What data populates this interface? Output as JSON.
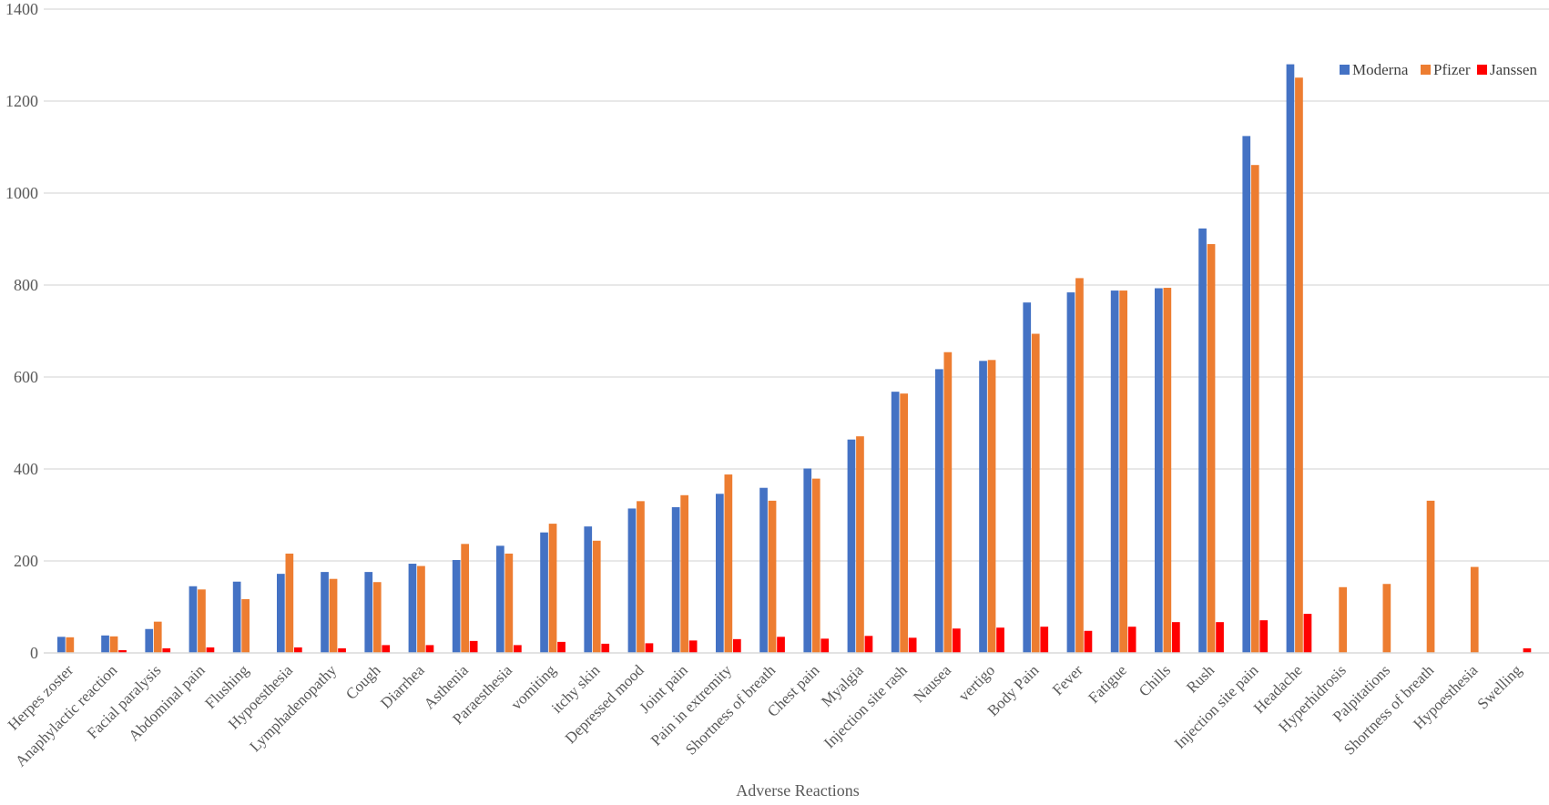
{
  "chart_data": {
    "type": "bar",
    "title": "",
    "xlabel": "Adverse Reactions",
    "ylabel": "",
    "ylim": [
      0,
      1400
    ],
    "yticks": [
      0,
      200,
      400,
      600,
      800,
      1000,
      1200,
      1400
    ],
    "grid": true,
    "legend_position": "top-right",
    "categories": [
      "Herpes zoster",
      "Anaphylactic reaction",
      "Facial paralysis",
      "Abdominal pain",
      "Flushing",
      "Hypoesthesia",
      "Lymphadenopathy",
      "Cough",
      "Diarrhea",
      "Asthenia",
      "Paraesthesia",
      "vomiting",
      "itchy skin",
      "Depressed mood",
      "Joint pain",
      "Pain in extremity",
      "Shortness of breath",
      "Chest pain",
      "Myalgia",
      "Injection site rash",
      "Nausea",
      "vertigo",
      "Body Pain",
      "Fever",
      "Fatigue",
      "Chills",
      "Rush",
      "Injection site pain",
      "Headache",
      "Hyperhidrosis",
      "Palpitations",
      "Shortness of breath",
      "Hypoesthesia",
      "Swelling"
    ],
    "series": [
      {
        "name": "Moderna",
        "color": "#4472C4",
        "values": [
          35,
          38,
          52,
          145,
          155,
          172,
          176,
          176,
          194,
          202,
          233,
          262,
          275,
          314,
          317,
          346,
          359,
          401,
          464,
          568,
          617,
          635,
          762,
          784,
          788,
          793,
          923,
          1124,
          1280,
          0,
          0,
          0,
          0,
          0
        ]
      },
      {
        "name": "Pfizer",
        "color": "#ED7D31",
        "values": [
          34,
          36,
          68,
          138,
          117,
          216,
          161,
          154,
          189,
          237,
          216,
          281,
          244,
          330,
          343,
          388,
          331,
          379,
          471,
          564,
          654,
          637,
          694,
          815,
          788,
          794,
          889,
          1061,
          1251,
          143,
          150,
          331,
          187,
          0
        ]
      },
      {
        "name": "Janssen",
        "color": "#FF0000",
        "values": [
          0,
          6,
          10,
          12,
          0,
          12,
          10,
          17,
          17,
          26,
          17,
          24,
          20,
          21,
          27,
          30,
          35,
          31,
          37,
          33,
          53,
          55,
          57,
          48,
          57,
          67,
          67,
          71,
          85,
          0,
          0,
          0,
          0,
          10
        ]
      }
    ]
  }
}
